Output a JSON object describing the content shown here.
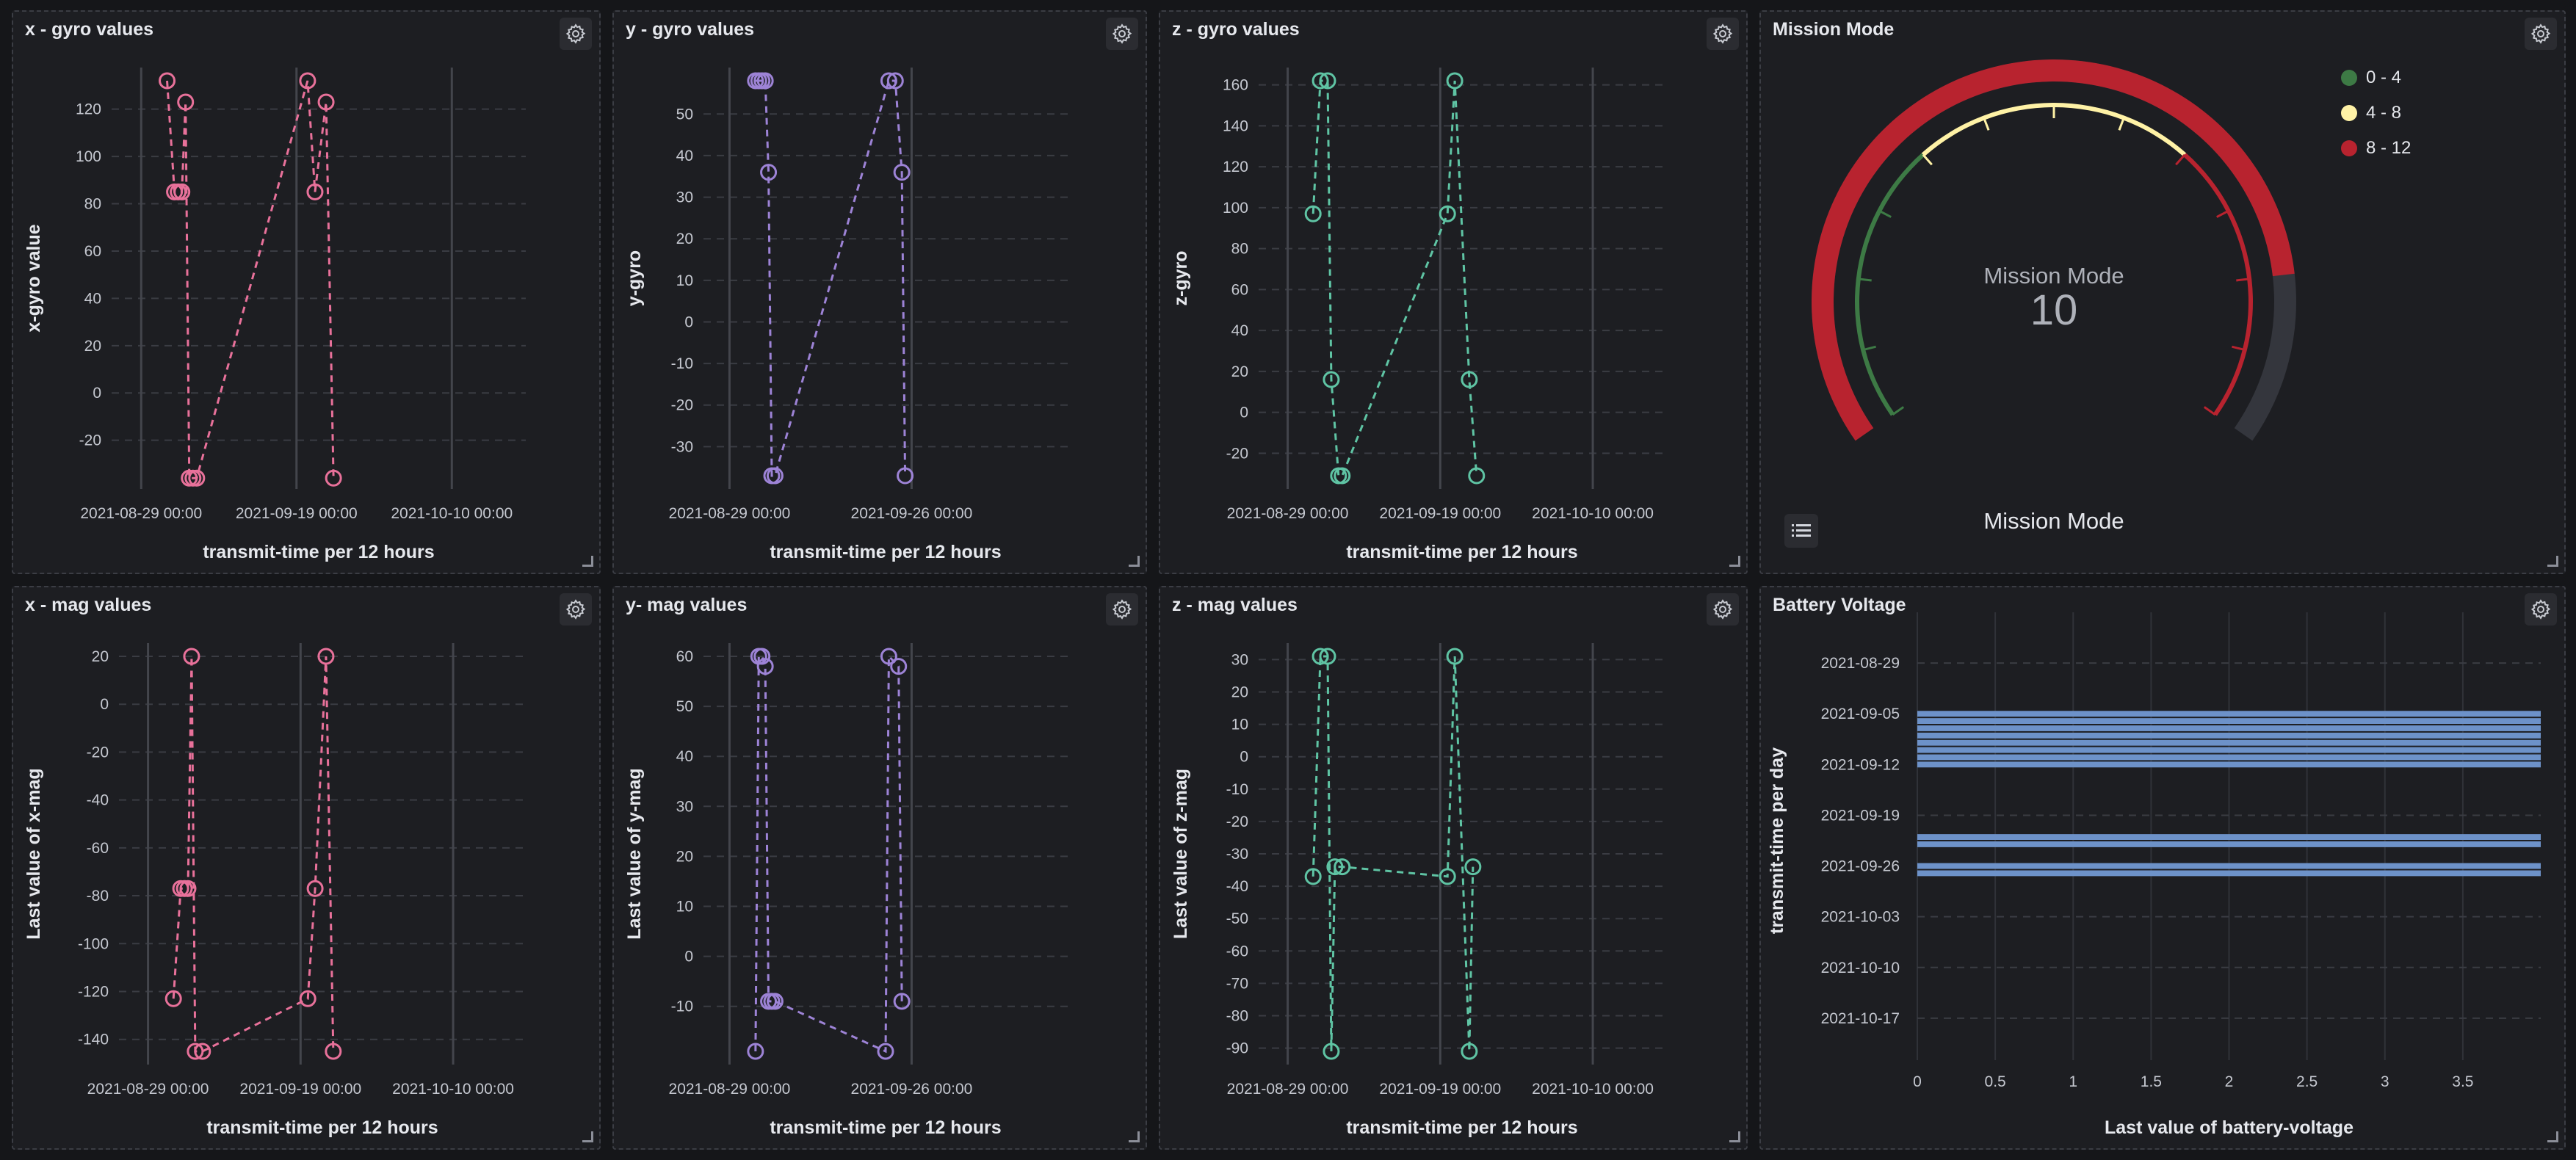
{
  "panels": {
    "x_gyro": {
      "title": "x - gyro values",
      "xlabel": "transmit-time per 12 hours",
      "ylabel": "x-gyro value",
      "ylim": [
        -35,
        132
      ],
      "yticks": [
        120,
        100,
        80,
        60,
        40,
        20,
        0,
        -20
      ],
      "xticks": [
        "2021-08-29 00:00",
        "2021-09-19 00:00",
        "2021-10-10 00:00"
      ],
      "color": "#e8719a",
      "points": [
        {
          "x": "2021-09-01 12:00",
          "y": 132
        },
        {
          "x": "2021-09-02 12:00",
          "y": 85
        },
        {
          "x": "2021-09-03 00:00",
          "y": 85
        },
        {
          "x": "2021-09-03 12:00",
          "y": 85
        },
        {
          "x": "2021-09-04 00:00",
          "y": 123
        },
        {
          "x": "2021-09-04 12:00",
          "y": -36
        },
        {
          "x": "2021-09-05 00:00",
          "y": -36
        },
        {
          "x": "2021-09-05 12:00",
          "y": -36
        },
        {
          "x": "2021-09-20 12:00",
          "y": 132
        },
        {
          "x": "2021-09-21 12:00",
          "y": 85
        },
        {
          "x": "2021-09-23 00:00",
          "y": 123
        },
        {
          "x": "2021-09-24 00:00",
          "y": -36
        }
      ]
    },
    "y_gyro": {
      "title": "y - gyro values",
      "xlabel": "transmit-time per 12 hours",
      "ylabel": "y-gyro",
      "ylim": [
        -37,
        58
      ],
      "yticks": [
        50,
        40,
        30,
        20,
        10,
        0,
        -10,
        -20,
        -30
      ],
      "xticks": [
        "2021-08-29 00:00",
        "2021-09-26 00:00"
      ],
      "color": "#9d83d6",
      "points": [
        {
          "x": "2021-09-02 00:00",
          "y": 58
        },
        {
          "x": "2021-09-02 12:00",
          "y": 58
        },
        {
          "x": "2021-09-03 00:00",
          "y": 58
        },
        {
          "x": "2021-09-03 12:00",
          "y": 58
        },
        {
          "x": "2021-09-04 00:00",
          "y": 36
        },
        {
          "x": "2021-09-04 12:00",
          "y": -37
        },
        {
          "x": "2021-09-05 00:00",
          "y": -37
        },
        {
          "x": "2021-09-22 12:00",
          "y": 58
        },
        {
          "x": "2021-09-23 12:00",
          "y": 58
        },
        {
          "x": "2021-09-24 12:00",
          "y": 36
        },
        {
          "x": "2021-09-25 00:00",
          "y": -37
        }
      ]
    },
    "z_gyro": {
      "title": "z - gyro values",
      "xlabel": "transmit-time per 12 hours",
      "ylabel": "z-gyro",
      "ylim": [
        -31,
        162
      ],
      "yticks": [
        160,
        140,
        120,
        100,
        80,
        60,
        40,
        20,
        0,
        -20
      ],
      "xticks": [
        "2021-08-29 00:00",
        "2021-09-19 00:00",
        "2021-10-10 00:00"
      ],
      "color": "#5fc4a4",
      "points": [
        {
          "x": "2021-09-01 12:00",
          "y": 97
        },
        {
          "x": "2021-09-02 12:00",
          "y": 162
        },
        {
          "x": "2021-09-03 12:00",
          "y": 162
        },
        {
          "x": "2021-09-04 00:00",
          "y": 16
        },
        {
          "x": "2021-09-05 00:00",
          "y": -31
        },
        {
          "x": "2021-09-05 12:00",
          "y": -31
        },
        {
          "x": "2021-09-20 00:00",
          "y": 97
        },
        {
          "x": "2021-09-21 00:00",
          "y": 162
        },
        {
          "x": "2021-09-23 00:00",
          "y": 16
        },
        {
          "x": "2021-09-24 00:00",
          "y": -31
        }
      ]
    },
    "x_mag": {
      "title": "x - mag values",
      "xlabel": "transmit-time per 12 hours",
      "ylabel": "Last value of x-mag",
      "ylim": [
        -145,
        20
      ],
      "yticks": [
        20,
        0,
        -20,
        -40,
        -60,
        -80,
        -100,
        -120,
        -140
      ],
      "xticks": [
        "2021-08-29 00:00",
        "2021-09-19 00:00",
        "2021-10-10 00:00"
      ],
      "color": "#e8719a",
      "points": [
        {
          "x": "2021-09-01 12:00",
          "y": -123
        },
        {
          "x": "2021-09-02 12:00",
          "y": -77
        },
        {
          "x": "2021-09-03 00:00",
          "y": -77
        },
        {
          "x": "2021-09-03 12:00",
          "y": -77
        },
        {
          "x": "2021-09-04 00:00",
          "y": 20
        },
        {
          "x": "2021-09-04 12:00",
          "y": -145
        },
        {
          "x": "2021-09-05 12:00",
          "y": -145
        },
        {
          "x": "2021-09-20 00:00",
          "y": -123
        },
        {
          "x": "2021-09-21 00:00",
          "y": -77
        },
        {
          "x": "2021-09-22 12:00",
          "y": 20
        },
        {
          "x": "2021-09-23 12:00",
          "y": -145
        }
      ]
    },
    "y_mag": {
      "title": "y- mag values",
      "xlabel": "transmit-time per 12 hours",
      "ylabel": "Last value of y-mag",
      "ylim": [
        -19,
        60
      ],
      "yticks": [
        60,
        50,
        40,
        30,
        20,
        10,
        0,
        -10
      ],
      "xticks": [
        "2021-08-29 00:00",
        "2021-09-26 00:00"
      ],
      "color": "#9d83d6",
      "points": [
        {
          "x": "2021-09-02 00:00",
          "y": -19
        },
        {
          "x": "2021-09-02 12:00",
          "y": 60
        },
        {
          "x": "2021-09-03 00:00",
          "y": 60
        },
        {
          "x": "2021-09-03 12:00",
          "y": 58
        },
        {
          "x": "2021-09-04 00:00",
          "y": -9
        },
        {
          "x": "2021-09-04 12:00",
          "y": -9
        },
        {
          "x": "2021-09-05 00:00",
          "y": -9
        },
        {
          "x": "2021-09-22 00:00",
          "y": -19
        },
        {
          "x": "2021-09-22 12:00",
          "y": 60
        },
        {
          "x": "2021-09-24 00:00",
          "y": 58
        },
        {
          "x": "2021-09-24 12:00",
          "y": -9
        }
      ]
    },
    "z_mag": {
      "title": "z - mag values",
      "xlabel": "transmit-time per 12 hours",
      "ylabel": "Last value of z-mag",
      "ylim": [
        -91,
        31
      ],
      "yticks": [
        30,
        20,
        10,
        0,
        -10,
        -20,
        -30,
        -40,
        -50,
        -60,
        -70,
        -80,
        -90
      ],
      "xticks": [
        "2021-08-29 00:00",
        "2021-09-19 00:00",
        "2021-10-10 00:00"
      ],
      "color": "#5fc4a4",
      "points": [
        {
          "x": "2021-09-01 12:00",
          "y": -37
        },
        {
          "x": "2021-09-02 12:00",
          "y": 31
        },
        {
          "x": "2021-09-03 12:00",
          "y": 31
        },
        {
          "x": "2021-09-04 00:00",
          "y": -91
        },
        {
          "x": "2021-09-04 12:00",
          "y": -34
        },
        {
          "x": "2021-09-05 12:00",
          "y": -34
        },
        {
          "x": "2021-09-20 00:00",
          "y": -37
        },
        {
          "x": "2021-09-21 00:00",
          "y": 31
        },
        {
          "x": "2021-09-23 00:00",
          "y": -91
        },
        {
          "x": "2021-09-23 12:00",
          "y": -34
        }
      ]
    },
    "mission": {
      "title": "Mission Mode",
      "center_label": "Mission Mode",
      "value": "10",
      "footer": "Mission Mode",
      "min": 0,
      "max": 12,
      "value_num": 10,
      "ranges": [
        {
          "label": "0 - 4",
          "color": "#3d7a45"
        },
        {
          "label": "4 - 8",
          "color": "#fff2a6"
        },
        {
          "label": "8 - 12",
          "color": "#b8232f"
        }
      ]
    },
    "battery": {
      "title": "Battery Voltage",
      "xlabel": "Last value of battery-voltage",
      "ylabel": "transmit-time per day",
      "xticks": [
        "0",
        "0.5",
        "1",
        "1.5",
        "2",
        "2.5",
        "3",
        "3.5"
      ],
      "yticks": [
        "2021-08-29",
        "2021-09-05",
        "2021-09-12",
        "2021-09-19",
        "2021-09-26",
        "2021-10-03",
        "2021-10-10",
        "2021-10-17"
      ],
      "color": "#6d92c9",
      "bars": [
        {
          "date": "2021-09-05",
          "value": 4.0
        },
        {
          "date": "2021-09-06",
          "value": 4.0
        },
        {
          "date": "2021-09-07",
          "value": 4.0
        },
        {
          "date": "2021-09-08",
          "value": 4.0
        },
        {
          "date": "2021-09-09",
          "value": 4.0
        },
        {
          "date": "2021-09-10",
          "value": 4.0
        },
        {
          "date": "2021-09-11",
          "value": 4.0
        },
        {
          "date": "2021-09-12",
          "value": 4.0
        },
        {
          "date": "2021-09-22",
          "value": 4.0
        },
        {
          "date": "2021-09-23",
          "value": 4.0
        },
        {
          "date": "2021-09-26",
          "value": 4.0
        },
        {
          "date": "2021-09-27",
          "value": 4.0
        }
      ]
    }
  }
}
